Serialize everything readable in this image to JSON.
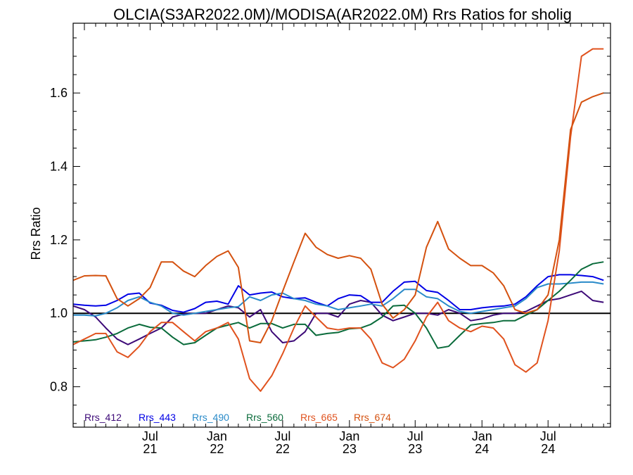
{
  "chart_data": {
    "type": "line",
    "title": "OLCIA(S3AR2022.0M)/MODISA(AR2022.0M)  Rrs Ratios for sholig",
    "ylabel": "Rrs Ratio",
    "xlabel": "",
    "ylim": [
      0.69,
      1.79
    ],
    "xlim": [
      "2020-12-01",
      "2024-12-20"
    ],
    "y_ticks": [
      0.8,
      1.0,
      1.2,
      1.4,
      1.6
    ],
    "y_tick_labels": [
      "0.8",
      "1.0",
      "1.2",
      "1.4",
      "1.6"
    ],
    "x_ticks": [
      {
        "date": "2021-07-01",
        "line1": "Jul",
        "line2": "21"
      },
      {
        "date": "2022-01-01",
        "line1": "Jan",
        "line2": "22"
      },
      {
        "date": "2022-07-01",
        "line1": "Jul",
        "line2": "22"
      },
      {
        "date": "2023-01-01",
        "line1": "Jan",
        "line2": "23"
      },
      {
        "date": "2023-07-01",
        "line1": "Jul",
        "line2": "23"
      },
      {
        "date": "2024-01-01",
        "line1": "Jan",
        "line2": "24"
      },
      {
        "date": "2024-07-01",
        "line1": "Jul",
        "line2": "24"
      }
    ],
    "reference_line": 1.0,
    "legend_position": "bottom-left",
    "x": [
      "2020-12-01",
      "2021-01-01",
      "2021-02-01",
      "2021-03-01",
      "2021-04-01",
      "2021-05-01",
      "2021-06-01",
      "2021-07-01",
      "2021-08-01",
      "2021-09-01",
      "2021-10-01",
      "2021-11-01",
      "2021-12-01",
      "2022-01-01",
      "2022-02-01",
      "2022-03-01",
      "2022-04-01",
      "2022-05-01",
      "2022-06-01",
      "2022-07-01",
      "2022-08-01",
      "2022-09-01",
      "2022-10-01",
      "2022-11-01",
      "2022-12-01",
      "2023-01-01",
      "2023-02-01",
      "2023-03-01",
      "2023-04-01",
      "2023-05-01",
      "2023-06-01",
      "2023-07-01",
      "2023-08-01",
      "2023-09-01",
      "2023-10-01",
      "2023-11-01",
      "2023-12-01",
      "2024-01-01",
      "2024-02-01",
      "2024-03-01",
      "2024-04-01",
      "2024-05-01",
      "2024-06-01",
      "2024-07-01",
      "2024-08-01",
      "2024-09-01",
      "2024-10-01",
      "2024-11-01",
      "2024-12-01"
    ],
    "series": [
      {
        "name": "Rrs_412",
        "color": "#3d0a78",
        "values": [
          1.02,
          1.01,
          0.99,
          0.96,
          0.93,
          0.915,
          0.93,
          0.945,
          0.96,
          0.99,
          0.998,
          1.0,
          1.0,
          1.01,
          1.02,
          1.015,
          0.99,
          1.01,
          0.95,
          0.92,
          0.925,
          0.95,
          1.0,
          1.0,
          0.99,
          1.025,
          1.035,
          1.03,
          0.995,
          0.98,
          0.99,
          1.0,
          1.0,
          0.995,
          1.01,
          1.0,
          0.98,
          0.985,
          0.995,
          1.0,
          1.0,
          1.005,
          1.02,
          1.035,
          1.04,
          1.05,
          1.06,
          1.035,
          1.03
        ]
      },
      {
        "name": "Rrs_443",
        "color": "#0000e6",
        "values": [
          1.025,
          1.022,
          1.02,
          1.022,
          1.035,
          1.052,
          1.055,
          1.028,
          1.022,
          1.008,
          1.003,
          1.013,
          1.03,
          1.033,
          1.025,
          1.075,
          1.05,
          1.055,
          1.058,
          1.045,
          1.04,
          1.042,
          1.03,
          1.02,
          1.04,
          1.05,
          1.048,
          1.03,
          1.03,
          1.06,
          1.085,
          1.087,
          1.062,
          1.057,
          1.035,
          1.01,
          1.01,
          1.015,
          1.018,
          1.02,
          1.025,
          1.045,
          1.075,
          1.1,
          1.105,
          1.105,
          1.103,
          1.1,
          1.09
        ]
      },
      {
        "name": "Rrs_490",
        "color": "#2a8bc9",
        "values": [
          0.995,
          0.995,
          0.993,
          1.0,
          1.015,
          1.035,
          1.045,
          1.03,
          1.02,
          1.0,
          0.995,
          1.0,
          1.005,
          1.01,
          1.015,
          1.018,
          1.045,
          1.035,
          1.05,
          1.055,
          1.04,
          1.035,
          1.025,
          1.02,
          1.01,
          1.015,
          1.02,
          1.025,
          1.02,
          1.04,
          1.065,
          1.065,
          1.045,
          1.04,
          1.02,
          1.005,
          1.0,
          1.005,
          1.01,
          1.015,
          1.02,
          1.04,
          1.07,
          1.08,
          1.08,
          1.082,
          1.085,
          1.085,
          1.08
        ]
      },
      {
        "name": "Rrs_560",
        "color": "#0a6b3b",
        "values": [
          0.922,
          0.925,
          0.928,
          0.935,
          0.945,
          0.96,
          0.97,
          0.962,
          0.96,
          0.935,
          0.915,
          0.92,
          0.94,
          0.96,
          0.968,
          0.975,
          0.96,
          0.972,
          0.972,
          0.96,
          0.97,
          0.97,
          0.94,
          0.945,
          0.948,
          0.958,
          0.96,
          0.97,
          0.99,
          1.02,
          1.022,
          1.0,
          0.96,
          0.905,
          0.91,
          0.94,
          0.968,
          0.972,
          0.975,
          0.98,
          0.98,
          0.995,
          1.01,
          1.035,
          1.06,
          1.09,
          1.12,
          1.135,
          1.14
        ]
      },
      {
        "name": "Rrs_665",
        "color": "#e0521e",
        "values": [
          0.915,
          0.93,
          0.945,
          0.945,
          0.895,
          0.88,
          0.91,
          0.95,
          0.975,
          0.975,
          0.95,
          0.925,
          0.95,
          0.96,
          0.975,
          0.93,
          0.822,
          0.788,
          0.83,
          0.89,
          0.96,
          1.02,
          0.99,
          0.96,
          0.955,
          0.96,
          0.96,
          0.93,
          0.865,
          0.852,
          0.875,
          0.925,
          0.99,
          1.03,
          0.98,
          0.96,
          0.95,
          0.965,
          0.96,
          0.93,
          0.86,
          0.84,
          0.865,
          0.98,
          1.17,
          1.48,
          1.7,
          1.72,
          1.72
        ]
      },
      {
        "name": "Rrs_674",
        "color": "#d4510f",
        "values": [
          1.09,
          1.102,
          1.103,
          1.102,
          1.04,
          1.02,
          1.04,
          1.07,
          1.14,
          1.14,
          1.115,
          1.1,
          1.13,
          1.155,
          1.17,
          1.125,
          0.925,
          0.92,
          0.98,
          1.06,
          1.14,
          1.218,
          1.18,
          1.16,
          1.15,
          1.157,
          1.15,
          1.12,
          1.025,
          0.987,
          1.01,
          1.05,
          1.18,
          1.25,
          1.175,
          1.15,
          1.13,
          1.13,
          1.11,
          1.075,
          1.01,
          1.0,
          1.01,
          1.05,
          1.2,
          1.5,
          1.575,
          1.59,
          1.6
        ]
      }
    ]
  }
}
